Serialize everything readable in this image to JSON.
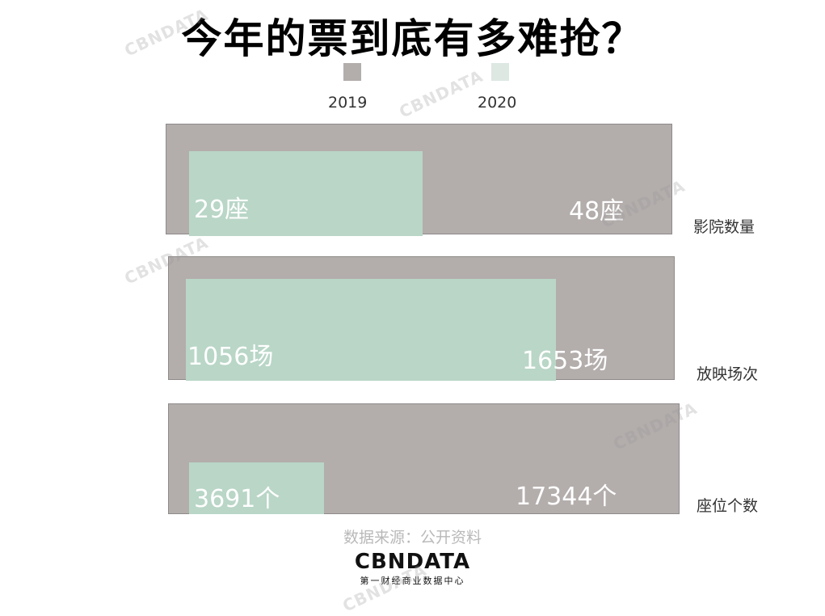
{
  "chart_data": {
    "type": "bar",
    "title": "今年的票到底有多难抢？",
    "series": [
      {
        "name": "2019",
        "color": "#b3adac"
      },
      {
        "name": "2020",
        "color": "#b9d6c7"
      }
    ],
    "categories": [
      {
        "label": "影院数量",
        "v2019": 48,
        "v2020": 29,
        "label2019": "48座",
        "label2020": "29座"
      },
      {
        "label": "放映场次",
        "v2019": 1653,
        "v2020": 1056,
        "label2019": "1653场",
        "label2020": "1056场"
      },
      {
        "label": "座位个数",
        "v2019": 17344,
        "v2020": 3691,
        "label2019": "17344个",
        "label2020": "3691个"
      }
    ]
  },
  "source": "数据来源：公开资料",
  "logo": {
    "text": "CBNDATA",
    "subtitle": "第一财经商业数据中心"
  },
  "watermark": "CBNDATA"
}
